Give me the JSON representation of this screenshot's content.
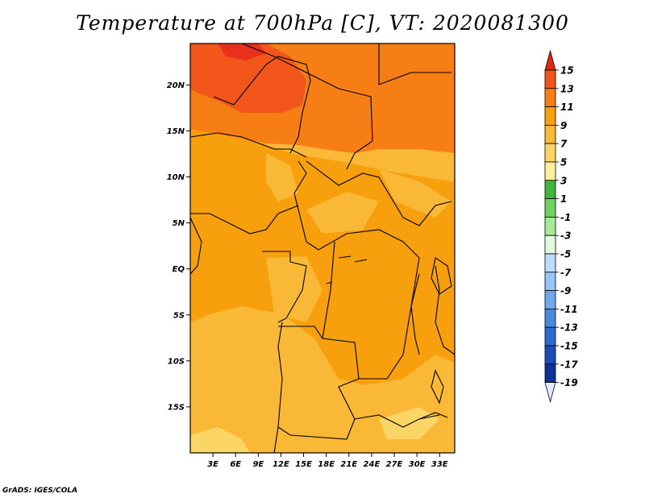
{
  "title": "Temperature at 700hPa [C], VT: 2020081300",
  "footer": "GrADS: IGES/COLA",
  "map": {
    "variable": "Temperature at 700hPa",
    "units": "C",
    "valid_time": "2020081300",
    "lat_ticks": [
      "20N",
      "15N",
      "10N",
      "5N",
      "EQ",
      "5S",
      "10S",
      "15S"
    ],
    "lon_ticks": [
      "3E",
      "6E",
      "9E",
      "12E",
      "15E",
      "18E",
      "21E",
      "24E",
      "27E",
      "30E",
      "33E"
    ],
    "lat_tick_values": [
      20,
      15,
      10,
      5,
      0,
      -5,
      -10,
      -15
    ],
    "lon_tick_values": [
      3,
      6,
      9,
      12,
      15,
      18,
      21,
      24,
      27,
      30,
      33
    ],
    "lat_range": [
      -20,
      24.5
    ],
    "lon_range": [
      0,
      35
    ]
  },
  "colorbar": {
    "labels": [
      "15",
      "13",
      "11",
      "9",
      "7",
      "5",
      "3",
      "1",
      "-1",
      "-3",
      "-5",
      "-7",
      "-9",
      "-11",
      "-13",
      "-15",
      "-17",
      "-19"
    ],
    "colors": [
      "#e8301c",
      "#f2561a",
      "#f77e14",
      "#f79f0c",
      "#f9b835",
      "#fbd565",
      "#fdefa0",
      "#40b43c",
      "#72d160",
      "#a7e89b",
      "#e2f9df",
      "#bcdcfa",
      "#97c5f7",
      "#6fa8ef",
      "#4a89e0",
      "#2f69cf",
      "#1b4bb8",
      "#0d3199",
      "#0a1d6d"
    ],
    "top_arrow_color": "#e02810",
    "bottom_arrow_color": "#e6e8fb"
  }
}
